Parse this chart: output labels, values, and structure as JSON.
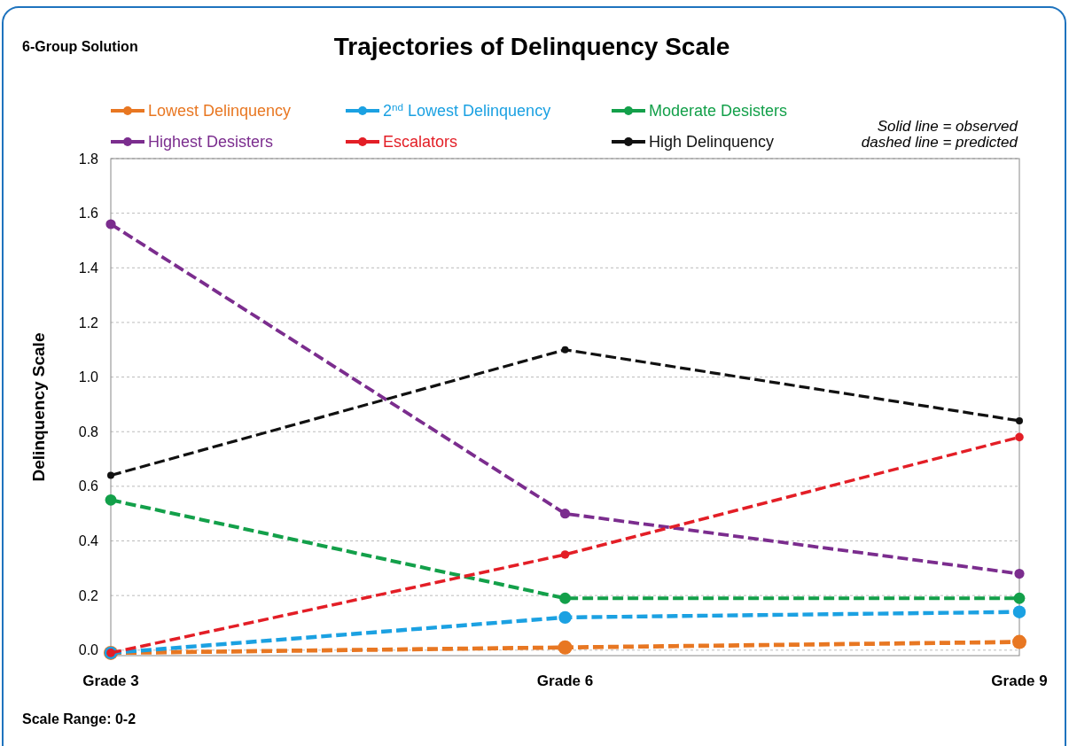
{
  "chart_data": {
    "type": "line",
    "title": "Trajectories of Delinquency Scale",
    "ylabel": "Delinquency Scale",
    "annotations": [
      "6-Group Solution",
      "Solid line = observed",
      "dashed line = predicted",
      "Scale Range: 0-2"
    ],
    "categories": [
      "Grade 3",
      "Grade 6",
      "Grade 9"
    ],
    "series": [
      {
        "name": "Lowest Delinquency",
        "color": "#e87722",
        "values": [
          -0.01,
          0.01,
          0.03
        ]
      },
      {
        "name": "2$^{nd}$ Lowest Delinquency",
        "color": "#1ba1e2",
        "values": [
          -0.01,
          0.12,
          0.14
        ]
      },
      {
        "name": "Moderate Desisters",
        "color": "#13a04a",
        "values": [
          0.55,
          0.19,
          0.19
        ]
      },
      {
        "name": "Highest Desisters",
        "color": "#7b2d8e",
        "values": [
          1.56,
          0.5,
          0.28
        ]
      },
      {
        "name": "Escalators",
        "color": "#e31e26",
        "values": [
          -0.01,
          0.35,
          0.78
        ]
      },
      {
        "name": "High Delinquency",
        "color": "#111111",
        "values": [
          0.64,
          1.1,
          0.84
        ]
      }
    ],
    "ylim": [
      -0.02,
      1.8
    ],
    "yticks": [
      {
        "value": 0,
        "label": "0.0"
      },
      0.2,
      0.4,
      0.6,
      0.8,
      {
        "value": 1,
        "label": "1.0"
      },
      1.2,
      1.4,
      1.6,
      1.8
    ],
    "grid": "y",
    "legend": "top",
    "marker": "circle",
    "line_style": "dashed"
  }
}
